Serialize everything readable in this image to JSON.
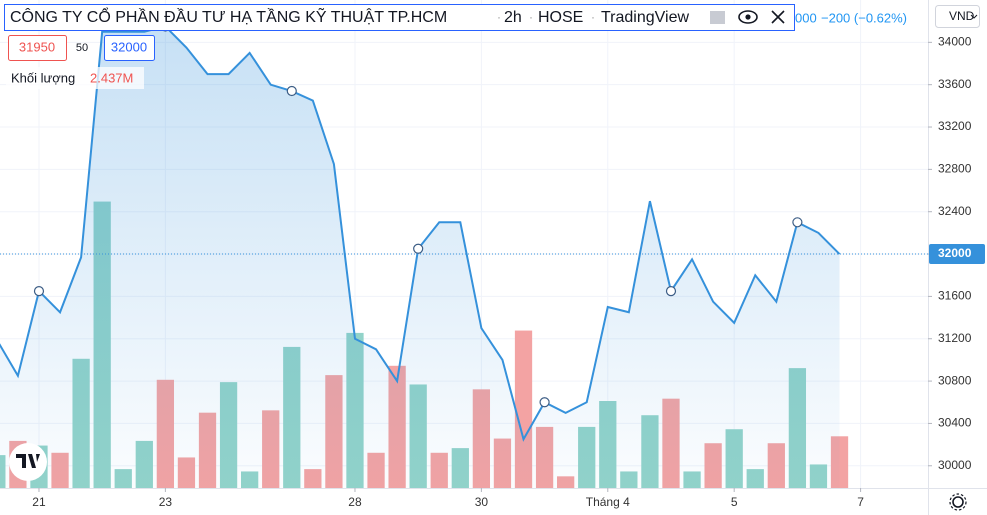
{
  "chart_data": {
    "type": "area",
    "title": "CÔNG TY CỔ PHẦN ĐẦU TƯ HẠ TẦNG KỸ THUẬT TP.HCM",
    "interval": "2h",
    "exchange": "HOSE",
    "source": "TradingView",
    "change_prefix": "000",
    "change_text": "−200 (−0.62%)",
    "bid": "31950",
    "spread": "50",
    "ask": "32000",
    "volume_label": "Khối lượng",
    "volume_value_label": "2.437M",
    "currency": "VND",
    "last_price": 32000,
    "color": "#3591db",
    "x": [
      0,
      1,
      2,
      3,
      4,
      5,
      6,
      7,
      8,
      9,
      10,
      11,
      12,
      13,
      14,
      15,
      16,
      17,
      18,
      19,
      20,
      21,
      22,
      23,
      24,
      25,
      26,
      27,
      28,
      29,
      30,
      31,
      32,
      33,
      34,
      35,
      36,
      37,
      38,
      39,
      40
    ],
    "values": [
      31190,
      30850,
      31650,
      31450,
      31970,
      34100,
      34100,
      34100,
      34150,
      33950,
      33700,
      33700,
      33900,
      33600,
      33540,
      33450,
      32850,
      31200,
      31100,
      30800,
      32050,
      32300,
      32300,
      31300,
      31000,
      30250,
      30600,
      30500,
      30600,
      31500,
      31450,
      32500,
      31650,
      31950,
      31550,
      31350,
      31800,
      31550,
      32300,
      32200,
      32000
    ],
    "markers": [
      2,
      8,
      14,
      20,
      26,
      32,
      38
    ],
    "volume": {
      "values": [
        1.55,
        2.22,
        2.0,
        1.66,
        6.09,
        13.5,
        0.89,
        2.22,
        5.1,
        1.44,
        3.55,
        4.99,
        0.78,
        3.66,
        6.65,
        0.89,
        5.32,
        7.31,
        1.66,
        5.76,
        4.88,
        1.66,
        1.88,
        4.65,
        2.33,
        7.42,
        2.88,
        0.55,
        2.88,
        4.1,
        0.78,
        3.43,
        4.21,
        0.78,
        2.11,
        2.77,
        0.89,
        2.11,
        5.65,
        1.11,
        2.437
      ],
      "colors": [
        "#92d3c9",
        "#f3a3a3",
        "#92d3c9",
        "#f3a3a3",
        "#92d3c9",
        "#92d3c9",
        "#92d3c9",
        "#92d3c9",
        "#f3a3a3",
        "#f3a3a3",
        "#f3a3a3",
        "#92d3c9",
        "#92d3c9",
        "#f3a3a3",
        "#92d3c9",
        "#f3a3a3",
        "#f3a3a3",
        "#92d3c9",
        "#f3a3a3",
        "#f3a3a3",
        "#92d3c9",
        "#f3a3a3",
        "#92d3c9",
        "#f3a3a3",
        "#f3a3a3",
        "#f3a3a3",
        "#f3a3a3",
        "#f3a3a3",
        "#92d3c9",
        "#92d3c9",
        "#92d3c9",
        "#92d3c9",
        "#f3a3a3",
        "#92d3c9",
        "#f3a3a3",
        "#92d3c9",
        "#92d3c9",
        "#f3a3a3",
        "#92d3c9",
        "#92d3c9",
        "#f3a3a3"
      ],
      "ylim": [
        0,
        23
      ]
    },
    "xlim": [
      0.15,
      44.2
    ],
    "xticks": [
      {
        "value": 2,
        "label": "21"
      },
      {
        "value": 8,
        "label": "23"
      },
      {
        "value": 17,
        "label": "28"
      },
      {
        "value": 23,
        "label": "30"
      },
      {
        "value": 29,
        "label": "Tháng 4"
      },
      {
        "value": 35,
        "label": "5"
      },
      {
        "value": 41,
        "label": "7"
      }
    ],
    "ylim": [
      29790,
      34400
    ],
    "yticks": [
      30000,
      30400,
      30800,
      31200,
      31600,
      32000,
      32400,
      32800,
      33200,
      33600,
      34000
    ],
    "grid": true
  }
}
